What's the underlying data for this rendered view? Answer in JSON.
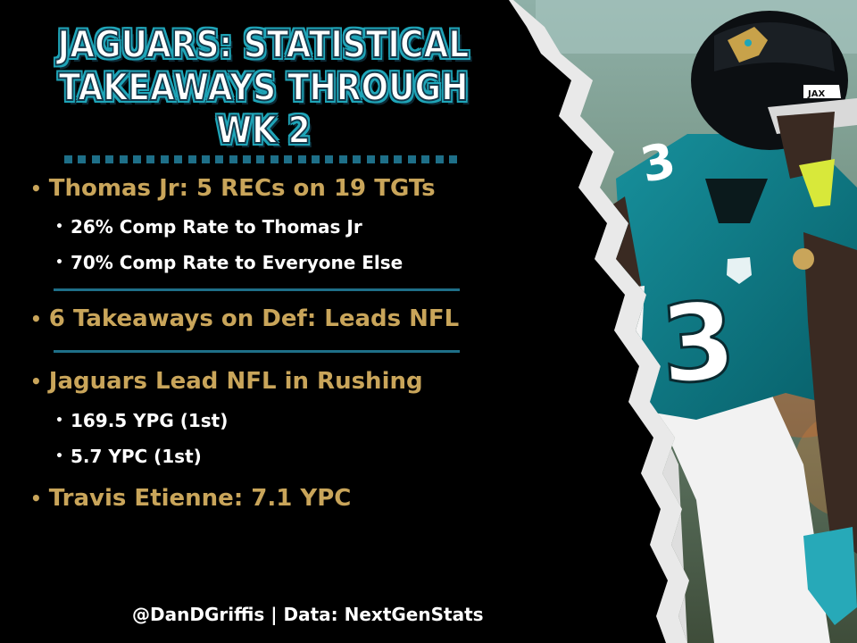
{
  "title": {
    "line1": "JAGUARS: STATISTICAL",
    "line2": "TAKEAWAYS THROUGH WK 2"
  },
  "sections": [
    {
      "main": "Thomas Jr: 5 RECs on 19 TGTs",
      "subs": [
        "26% Comp Rate to Thomas Jr",
        "70% Comp Rate to Everyone Else"
      ]
    },
    {
      "main": "6 Takeaways on Def: Leads NFL",
      "subs": []
    },
    {
      "main": "Jaguars Lead NFL in Rushing",
      "subs": [
        "169.5 YPG (1st)",
        "5.7 YPC (1st)"
      ]
    },
    {
      "main": "Travis Etienne: 7.1 YPC",
      "subs": []
    }
  ],
  "credit": "@DanDGriffis | Data: NextGenStats",
  "photo": {
    "jersey_number": "3",
    "helmet_tag": "JAX"
  },
  "colors": {
    "background": "#000000",
    "gold": "#c9a55a",
    "teal": "#1fa5b8",
    "jersey": "#0b7480",
    "divider": "#1e6f88"
  }
}
